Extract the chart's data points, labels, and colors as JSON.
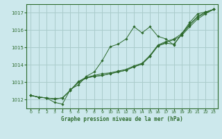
{
  "title": "Graphe pression niveau de la mer (hPa)",
  "bg_color": "#cce8ec",
  "grid_color": "#aacccc",
  "line_color": "#2d6a2d",
  "xlim": [
    -0.5,
    23.5
  ],
  "ylim": [
    1011.5,
    1017.5
  ],
  "xticks": [
    0,
    1,
    2,
    3,
    4,
    5,
    6,
    7,
    8,
    9,
    10,
    11,
    12,
    13,
    14,
    15,
    16,
    17,
    18,
    19,
    20,
    21,
    22,
    23
  ],
  "yticks": [
    1012,
    1013,
    1014,
    1015,
    1016,
    1017
  ],
  "series": [
    [
      1012.25,
      1012.15,
      1012.1,
      1011.85,
      1011.75,
      1012.6,
      1012.85,
      1013.35,
      1013.6,
      1014.25,
      1015.05,
      1015.2,
      1015.5,
      1016.2,
      1015.85,
      1016.2,
      1015.65,
      1015.5,
      1015.15,
      1015.8,
      1016.45,
      1016.95,
      1017.05,
      1017.2
    ],
    [
      1012.25,
      1012.15,
      1012.1,
      1012.05,
      1012.1,
      1012.55,
      1013.0,
      1013.25,
      1013.35,
      1013.4,
      1013.5,
      1013.6,
      1013.7,
      1013.9,
      1014.05,
      1014.5,
      1015.1,
      1015.3,
      1015.45,
      1015.7,
      1016.2,
      1016.65,
      1016.95,
      1017.2
    ],
    [
      1012.25,
      1012.15,
      1012.1,
      1012.05,
      1012.1,
      1012.55,
      1013.0,
      1013.25,
      1013.35,
      1013.4,
      1013.5,
      1013.6,
      1013.7,
      1013.9,
      1014.05,
      1014.5,
      1015.1,
      1015.25,
      1015.2,
      1015.75,
      1016.3,
      1016.75,
      1017.0,
      1017.2
    ],
    [
      1012.25,
      1012.15,
      1012.1,
      1012.05,
      1012.1,
      1012.55,
      1013.05,
      1013.3,
      1013.4,
      1013.5,
      1013.55,
      1013.65,
      1013.75,
      1013.95,
      1014.1,
      1014.55,
      1015.15,
      1015.35,
      1015.5,
      1015.8,
      1016.35,
      1016.8,
      1017.05,
      1017.2
    ]
  ]
}
